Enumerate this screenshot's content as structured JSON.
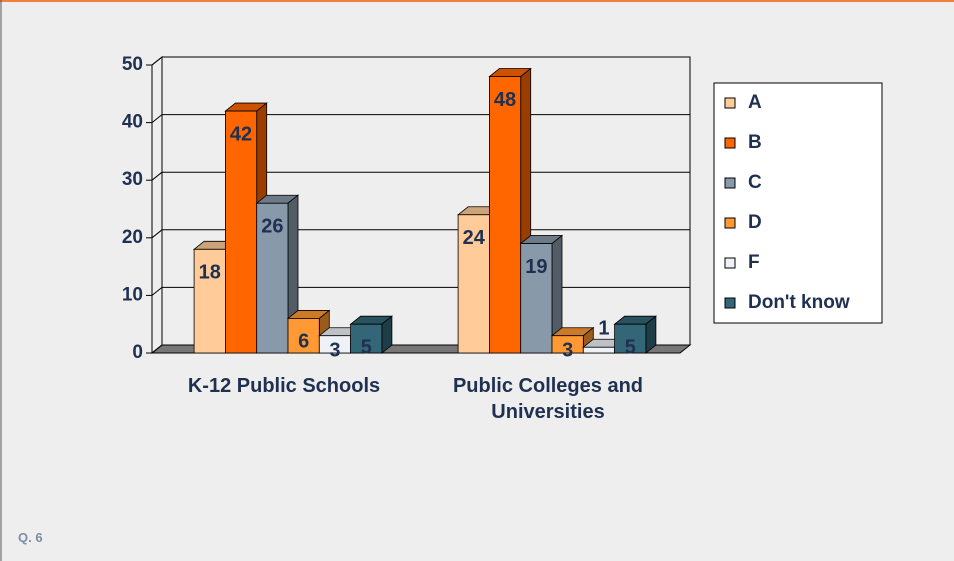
{
  "chart_data": {
    "type": "bar3d",
    "categories": [
      "K-12 Public Schools",
      "Public Colleges and Universities"
    ],
    "series": [
      {
        "name": "A",
        "color": "#ffcc99",
        "values": [
          18,
          24
        ]
      },
      {
        "name": "B",
        "color": "#ff6600",
        "values": [
          42,
          48
        ]
      },
      {
        "name": "C",
        "color": "#8899aa",
        "values": [
          26,
          19
        ]
      },
      {
        "name": "D",
        "color": "#ff9933",
        "values": [
          6,
          3
        ]
      },
      {
        "name": "F",
        "color": "#eef2f8",
        "values": [
          3,
          1
        ]
      },
      {
        "name": "Don't know",
        "color": "#336677",
        "values": [
          5,
          5
        ]
      }
    ],
    "ylim": [
      0,
      50
    ],
    "yticks": [
      0,
      10,
      20,
      30,
      40,
      50
    ],
    "grid": true,
    "legend": "right"
  },
  "footer": {
    "question": "Q. 6"
  }
}
